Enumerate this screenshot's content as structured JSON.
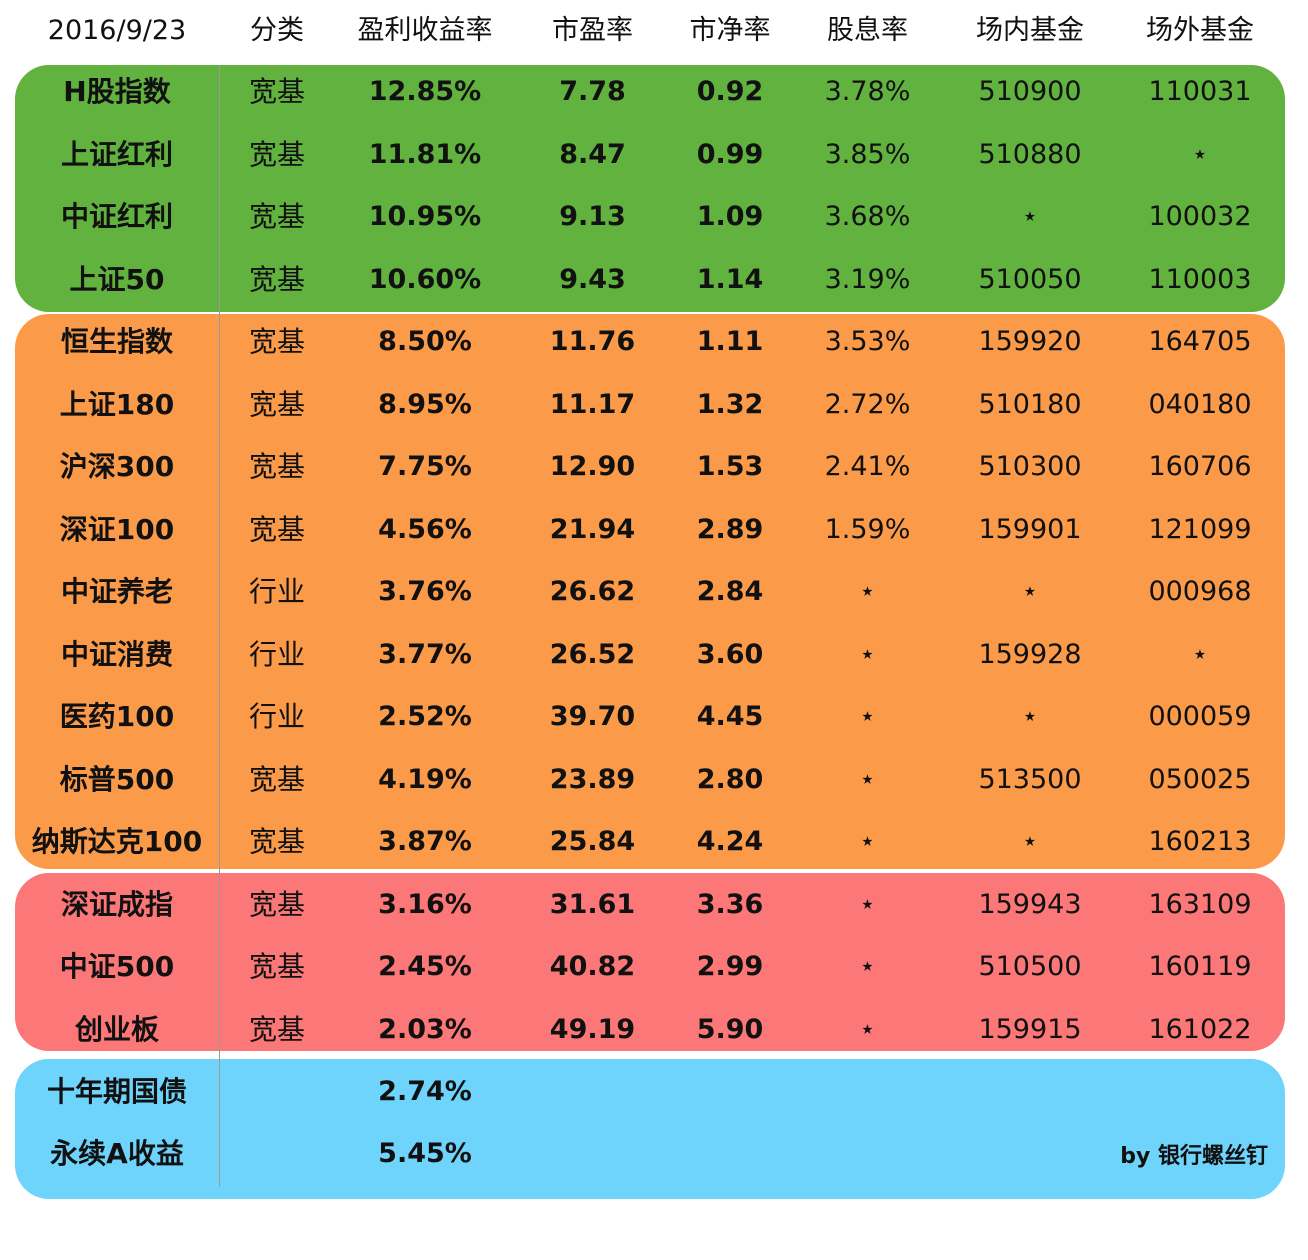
{
  "header": {
    "date": "2016/9/23",
    "category": "分类",
    "earnings_yield": "盈利收益率",
    "pe": "市盈率",
    "pb": "市净率",
    "dividend": "股息率",
    "onmarket": "场内基金",
    "offmarket": "场外基金"
  },
  "rows": [
    {
      "name": "H股指数",
      "category": "宽基",
      "yield": "12.85%",
      "pe": "7.78",
      "pb": "0.92",
      "div": "3.78%",
      "on": "510900",
      "off": "110031"
    },
    {
      "name": "上证红利",
      "category": "宽基",
      "yield": "11.81%",
      "pe": "8.47",
      "pb": "0.99",
      "div": "3.85%",
      "on": "510880",
      "off": "⋆"
    },
    {
      "name": "中证红利",
      "category": "宽基",
      "yield": "10.95%",
      "pe": "9.13",
      "pb": "1.09",
      "div": "3.68%",
      "on": "⋆",
      "off": "100032"
    },
    {
      "name": "上证50",
      "category": "宽基",
      "yield": "10.60%",
      "pe": "9.43",
      "pb": "1.14",
      "div": "3.19%",
      "on": "510050",
      "off": "110003"
    },
    {
      "name": "恒生指数",
      "category": "宽基",
      "yield": "8.50%",
      "pe": "11.76",
      "pb": "1.11",
      "div": "3.53%",
      "on": "159920",
      "off": "164705"
    },
    {
      "name": "上证180",
      "category": "宽基",
      "yield": "8.95%",
      "pe": "11.17",
      "pb": "1.32",
      "div": "2.72%",
      "on": "510180",
      "off": "040180"
    },
    {
      "name": "沪深300",
      "category": "宽基",
      "yield": "7.75%",
      "pe": "12.90",
      "pb": "1.53",
      "div": "2.41%",
      "on": "510300",
      "off": "160706"
    },
    {
      "name": "深证100",
      "category": "宽基",
      "yield": "4.56%",
      "pe": "21.94",
      "pb": "2.89",
      "div": "1.59%",
      "on": "159901",
      "off": "121099"
    },
    {
      "name": "中证养老",
      "category": "行业",
      "yield": "3.76%",
      "pe": "26.62",
      "pb": "2.84",
      "div": "⋆",
      "on": "⋆",
      "off": "000968"
    },
    {
      "name": "中证消费",
      "category": "行业",
      "yield": "3.77%",
      "pe": "26.52",
      "pb": "3.60",
      "div": "⋆",
      "on": "159928",
      "off": "⋆"
    },
    {
      "name": "医药100",
      "category": "行业",
      "yield": "2.52%",
      "pe": "39.70",
      "pb": "4.45",
      "div": "⋆",
      "on": "⋆",
      "off": "000059"
    },
    {
      "name": "标普500",
      "category": "宽基",
      "yield": "4.19%",
      "pe": "23.89",
      "pb": "2.80",
      "div": "⋆",
      "on": "513500",
      "off": "050025"
    },
    {
      "name": "纳斯达克100",
      "category": "宽基",
      "yield": "3.87%",
      "pe": "25.84",
      "pb": "4.24",
      "div": "⋆",
      "on": "⋆",
      "off": "160213"
    },
    {
      "name": "深证成指",
      "category": "宽基",
      "yield": "3.16%",
      "pe": "31.61",
      "pb": "3.36",
      "div": "⋆",
      "on": "159943",
      "off": "163109"
    },
    {
      "name": "中证500",
      "category": "宽基",
      "yield": "2.45%",
      "pe": "40.82",
      "pb": "2.99",
      "div": "⋆",
      "on": "510500",
      "off": "160119"
    },
    {
      "name": "创业板",
      "category": "宽基",
      "yield": "2.03%",
      "pe": "49.19",
      "pb": "5.90",
      "div": "⋆",
      "on": "159915",
      "off": "161022"
    }
  ],
  "bonds": [
    {
      "name": "十年期国债",
      "yield": "2.74%"
    },
    {
      "name": "永续A收益",
      "yield": "5.45%"
    }
  ],
  "credit": "by 银行螺丝钉",
  "colors": {
    "group_green": "#62b23f",
    "group_orange": "#fb9b4a",
    "group_red": "#fc7777",
    "group_blue": "#6fd4fb"
  }
}
